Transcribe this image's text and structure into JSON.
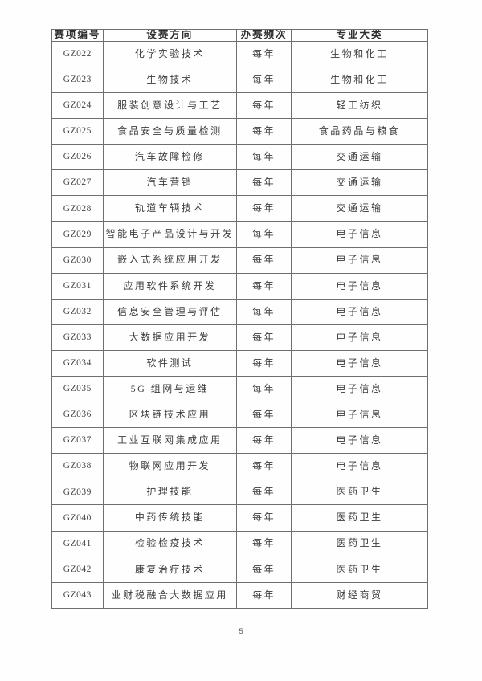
{
  "page": {
    "number": "5"
  },
  "table": {
    "headers": [
      "赛项编号",
      "设赛方向",
      "办赛频次",
      "专业大类"
    ],
    "rows": [
      [
        "GZ022",
        "化学实验技术",
        "每年",
        "生物和化工"
      ],
      [
        "GZ023",
        "生物技术",
        "每年",
        "生物和化工"
      ],
      [
        "GZ024",
        "服装创意设计与工艺",
        "每年",
        "轻工纺织"
      ],
      [
        "GZ025",
        "食品安全与质量检测",
        "每年",
        "食品药品与粮食"
      ],
      [
        "GZ026",
        "汽车故障检修",
        "每年",
        "交通运输"
      ],
      [
        "GZ027",
        "汽车营销",
        "每年",
        "交通运输"
      ],
      [
        "GZ028",
        "轨道车辆技术",
        "每年",
        "交通运输"
      ],
      [
        "GZ029",
        "智能电子产品设计与开发",
        "每年",
        "电子信息"
      ],
      [
        "GZ030",
        "嵌入式系统应用开发",
        "每年",
        "电子信息"
      ],
      [
        "GZ031",
        "应用软件系统开发",
        "每年",
        "电子信息"
      ],
      [
        "GZ032",
        "信息安全管理与评估",
        "每年",
        "电子信息"
      ],
      [
        "GZ033",
        "大数据应用开发",
        "每年",
        "电子信息"
      ],
      [
        "GZ034",
        "软件测试",
        "每年",
        "电子信息"
      ],
      [
        "GZ035",
        "5G 组网与运维",
        "每年",
        "电子信息"
      ],
      [
        "GZ036",
        "区块链技术应用",
        "每年",
        "电子信息"
      ],
      [
        "GZ037",
        "工业互联网集成应用",
        "每年",
        "电子信息"
      ],
      [
        "GZ038",
        "物联网应用开发",
        "每年",
        "电子信息"
      ],
      [
        "GZ039",
        "护理技能",
        "每年",
        "医药卫生"
      ],
      [
        "GZ040",
        "中药传统技能",
        "每年",
        "医药卫生"
      ],
      [
        "GZ041",
        "检验检疫技术",
        "每年",
        "医药卫生"
      ],
      [
        "GZ042",
        "康复治疗技术",
        "每年",
        "医药卫生"
      ],
      [
        "GZ043",
        "业财税融合大数据应用",
        "每年",
        "财经商贸"
      ]
    ]
  }
}
